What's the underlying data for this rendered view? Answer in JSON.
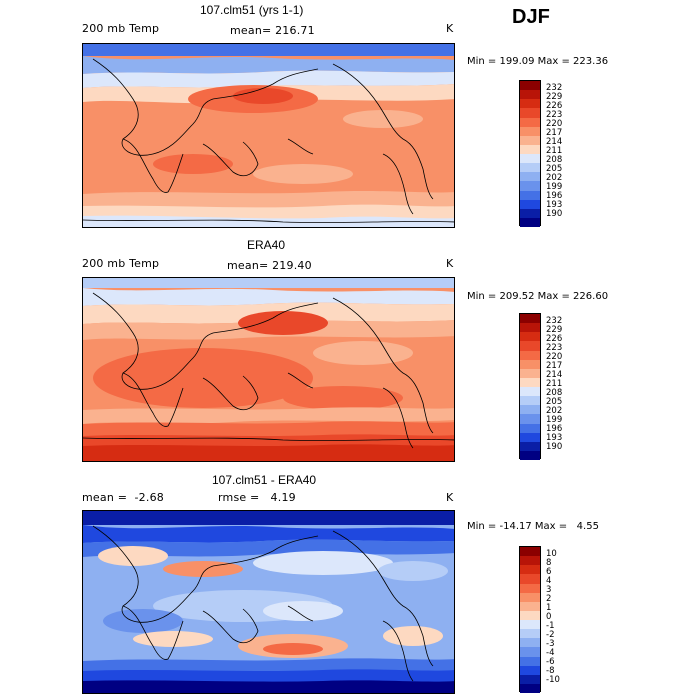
{
  "season": "DJF",
  "chart_data": [
    {
      "type": "heatmap",
      "title": "107.clm51 (yrs 1-1)",
      "left_label": "200 mb Temp",
      "center_label": "mean= 216.71",
      "right_label": "K",
      "minmax": "Min = 199.09 Max = 223.36",
      "levels": [
        "232",
        "229",
        "226",
        "223",
        "220",
        "217",
        "214",
        "211",
        "208",
        "205",
        "202",
        "199",
        "196",
        "193",
        "190"
      ]
    },
    {
      "type": "heatmap",
      "title": "ERA40",
      "left_label": "200 mb Temp",
      "center_label": "mean= 219.40",
      "right_label": "K",
      "minmax": "Min = 209.52 Max = 226.60",
      "levels": [
        "232",
        "229",
        "226",
        "223",
        "220",
        "217",
        "214",
        "211",
        "208",
        "205",
        "202",
        "199",
        "196",
        "193",
        "190"
      ]
    },
    {
      "type": "heatmap",
      "title": "107.clm51 - ERA40",
      "left_label": "mean =  -2.68",
      "center_label": "rmse =   4.19",
      "right_label": "K",
      "minmax": "Min = -14.17 Max =   4.55",
      "levels": [
        "10",
        "8",
        "6",
        "4",
        "3",
        "2",
        "1",
        "0",
        "-1",
        "-2",
        "-3",
        "-4",
        "-6",
        "-8",
        "-10"
      ]
    }
  ],
  "colors": {
    "scale": [
      "#8b0000",
      "#b81408",
      "#d62c12",
      "#e9482a",
      "#f46a45",
      "#f89067",
      "#fab28f",
      "#fdd9c1",
      "#dce7fb",
      "#b5cdf7",
      "#8eb0f1",
      "#6a92ec",
      "#4471e6",
      "#1f48df",
      "#0a1ea6",
      "#000082"
    ]
  }
}
